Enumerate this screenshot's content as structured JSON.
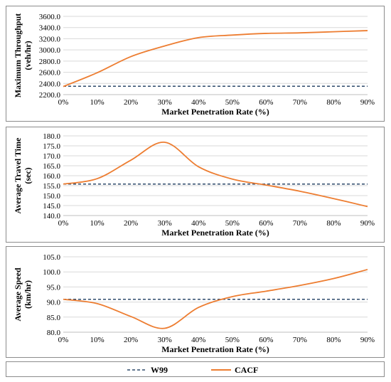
{
  "colors": {
    "W99": "#2e4a6b",
    "CACF": "#ed7d31",
    "grid": "#d9d9d9",
    "axis": "#bfbfbf"
  },
  "legend": [
    {
      "name": "W99",
      "style": "dashed"
    },
    {
      "name": "CACF",
      "style": "solid"
    }
  ],
  "chart_data": [
    {
      "type": "line",
      "xlabel": "Market Penetration Rate (%)",
      "ylabel_lines": [
        "Maximum Throughput",
        "(veh/hr)"
      ],
      "categories": [
        "0%",
        "10%",
        "20%",
        "30%",
        "40%",
        "50%",
        "60%",
        "70%",
        "80%",
        "90%"
      ],
      "ylim": [
        2200,
        3600
      ],
      "yticks": [
        "2200.0",
        "2400.0",
        "2600.0",
        "2800.0",
        "3000.0",
        "3200.0",
        "3400.0",
        "3600.0"
      ],
      "grid": true,
      "series": [
        {
          "name": "W99",
          "values": [
            2350,
            2350,
            2350,
            2350,
            2350,
            2350,
            2350,
            2350,
            2350,
            2350
          ]
        },
        {
          "name": "CACF",
          "values": [
            2345,
            2590,
            2880,
            3070,
            3220,
            3265,
            3295,
            3305,
            3325,
            3345
          ]
        }
      ]
    },
    {
      "type": "line",
      "xlabel": "Market Penetration Rate (%)",
      "ylabel_lines": [
        "Average Travel Time",
        "(sec)"
      ],
      "categories": [
        "0%",
        "10%",
        "20%",
        "30%",
        "40%",
        "50%",
        "60%",
        "70%",
        "80%",
        "90%"
      ],
      "ylim": [
        140,
        180
      ],
      "yticks": [
        "140.0",
        "145.0",
        "150.0",
        "155.0",
        "160.0",
        "165.0",
        "170.0",
        "175.0",
        "180.0"
      ],
      "grid": true,
      "series": [
        {
          "name": "W99",
          "values": [
            155.8,
            155.8,
            155.8,
            155.8,
            155.8,
            155.8,
            155.8,
            155.8,
            155.8,
            155.8
          ]
        },
        {
          "name": "CACF",
          "values": [
            155.8,
            158.5,
            167.8,
            176.8,
            164.5,
            158.3,
            155.3,
            152.2,
            148.5,
            144.5
          ]
        }
      ]
    },
    {
      "type": "line",
      "xlabel": "Market Penetration Rate (%)",
      "ylabel_lines": [
        "Average Speed",
        "(km/hr)"
      ],
      "categories": [
        "0%",
        "10%",
        "20%",
        "30%",
        "40%",
        "50%",
        "60%",
        "70%",
        "80%",
        "90%"
      ],
      "ylim": [
        80,
        105
      ],
      "yticks": [
        "80.0",
        "85.0",
        "90.0",
        "95.0",
        "100.0",
        "105.0"
      ],
      "grid": true,
      "series": [
        {
          "name": "W99",
          "values": [
            90.9,
            90.9,
            90.9,
            90.9,
            90.9,
            90.9,
            90.9,
            90.9,
            90.9,
            90.9
          ]
        },
        {
          "name": "CACF",
          "values": [
            90.9,
            89.5,
            85.2,
            81.3,
            88.2,
            91.8,
            93.6,
            95.5,
            97.8,
            100.8
          ]
        }
      ]
    }
  ]
}
